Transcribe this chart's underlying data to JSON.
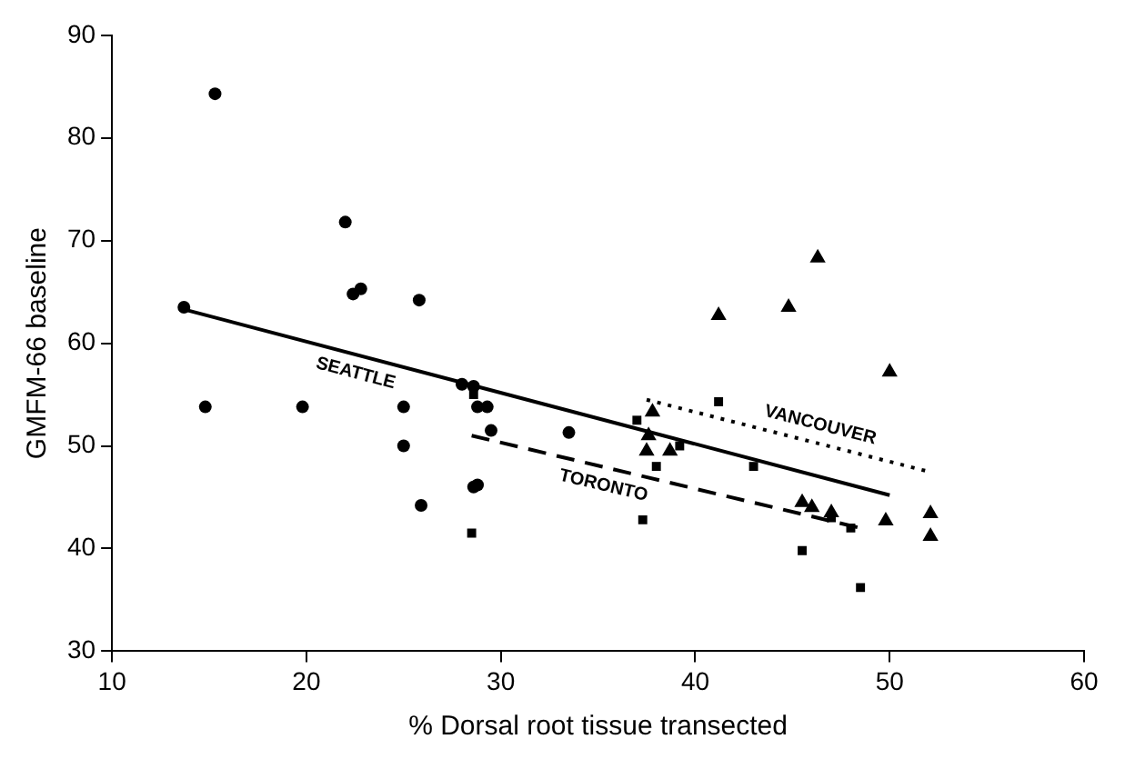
{
  "chart_data": {
    "type": "scatter",
    "xlabel": "% Dorsal root tissue transected",
    "ylabel": "GMFM-66 baseline",
    "xlim": [
      10,
      60
    ],
    "xticks": [
      10,
      20,
      30,
      40,
      50,
      60
    ],
    "ylim": [
      30,
      90
    ],
    "yticks": [
      30,
      40,
      50,
      60,
      70,
      80,
      90
    ],
    "grid": false,
    "legend": false,
    "series": [
      {
        "marker": "circle",
        "color": "#000000",
        "x": [
          13.7,
          15.3,
          14.8,
          19.8,
          22,
          22.4,
          22.8,
          25.8,
          25,
          25,
          25.9,
          28,
          28.6,
          28.8,
          29.3,
          29.5,
          28.6,
          28.8,
          33.5
        ],
        "values": [
          63.5,
          84.3,
          53.8,
          53.8,
          71.8,
          64.8,
          65.3,
          64.2,
          50,
          53.8,
          44.2,
          56,
          55.8,
          53.8,
          53.8,
          51.5,
          46,
          46.2,
          51.3
        ]
      },
      {
        "marker": "square",
        "color": "#000000",
        "x": [
          28.5,
          28.6,
          37,
          38,
          39.2,
          41.2,
          37.3,
          43,
          45.5,
          47,
          48,
          48.5
        ],
        "values": [
          41.5,
          55,
          52.5,
          48,
          50,
          54.3,
          42.8,
          48,
          39.8,
          43,
          42,
          36.2
        ]
      },
      {
        "marker": "triangle",
        "color": "#000000",
        "x": [
          37.8,
          37.6,
          37.5,
          38.7,
          41.2,
          44.8,
          46.3,
          50,
          45.5,
          46,
          47,
          49.8,
          52.1,
          52.1
        ],
        "values": [
          53.3,
          51,
          49.5,
          49.5,
          62.7,
          63.5,
          68.3,
          57.2,
          44.5,
          44,
          43.5,
          42.7,
          43.4,
          41.2
        ]
      },
      {
        "type": "line",
        "name": "SEATTLE",
        "line_style": "solid",
        "color": "#000000",
        "x": [
          13.7,
          50
        ],
        "values": [
          63.3,
          45.2
        ]
      },
      {
        "type": "line",
        "name": "TORONTO",
        "line_style": "dashed",
        "color": "#000000",
        "x": [
          28.5,
          48.5
        ],
        "values": [
          51,
          42
        ]
      },
      {
        "type": "line",
        "name": "VANCOUVER",
        "line_style": "dotted",
        "color": "#000000",
        "x": [
          37.5,
          52
        ],
        "values": [
          54.5,
          47.5
        ]
      }
    ]
  }
}
